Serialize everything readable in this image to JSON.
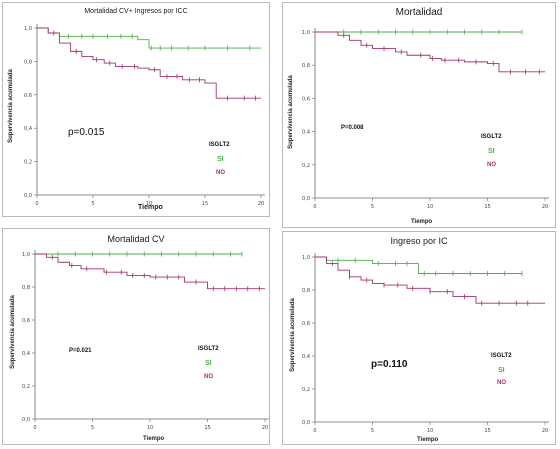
{
  "colors": {
    "si": "#4cae4c",
    "no": "#a0326e",
    "axis": "#666666",
    "grey_curve": "#9a9a9a"
  },
  "charts": [
    {
      "title": "Mortalidad CV+ Ingresos por ICC",
      "ylabel": "Supervivencia acumulada",
      "xlabel": "Tiempo",
      "pvalue": "p=0.015",
      "legend_title": "ISGLT2",
      "legend_si": "SI",
      "legend_no": "NO"
    },
    {
      "title": "Mortalidad",
      "ylabel": "Supervivencia acumulada",
      "xlabel": "Tiempo",
      "pvalue": "P=0.008",
      "legend_title": "ISGLT2",
      "legend_si": "SI",
      "legend_no": "NO"
    },
    {
      "title": "Mortalidad CV",
      "ylabel": "Supervivencia acumulada",
      "xlabel": "Tiempo",
      "pvalue": "P=0.021",
      "legend_title": "ISGLT2",
      "legend_si": "SI",
      "legend_no": "NO"
    },
    {
      "title": "Ingreso por IC",
      "ylabel": "Supervivencia acumulada",
      "xlabel": "Tiempo",
      "pvalue": "p=0.110",
      "legend_title": "ISGL​T2",
      "legend_si": "SI",
      "legend_no": "NO"
    }
  ],
  "chart_data": [
    {
      "type": "line",
      "title": "Mortalidad CV+ Ingresos por ICC",
      "xlabel": "Tiempo",
      "ylabel": "Supervivencia acumulada",
      "xticks": [
        "0",
        "5",
        "10",
        "15",
        "20"
      ],
      "yticks": [
        "0,0",
        "0,2",
        "0,4",
        "0,6",
        "0,8",
        "1,0"
      ],
      "xlim": [
        0,
        20
      ],
      "ylim": [
        0,
        1.0
      ],
      "series": [
        {
          "name": "SI",
          "step_x": [
            0,
            1,
            2,
            9,
            10,
            20
          ],
          "step_y": [
            1.0,
            0.97,
            0.95,
            0.93,
            0.88,
            0.88
          ],
          "censor_x": [
            2.8,
            4,
            5,
            6.3,
            7.5,
            8.5,
            10.2,
            11,
            12,
            13.5,
            15,
            17,
            19
          ]
        },
        {
          "name": "NO",
          "step_x": [
            0,
            1,
            2,
            3,
            4,
            5,
            6,
            7,
            9,
            10,
            11,
            13,
            15,
            16,
            20
          ],
          "step_y": [
            1.0,
            0.97,
            0.91,
            0.86,
            0.83,
            0.81,
            0.79,
            0.77,
            0.76,
            0.75,
            0.71,
            0.69,
            0.67,
            0.58,
            0.58
          ],
          "censor_x": [
            1.5,
            3.5,
            5.3,
            6.5,
            7.6,
            8.7,
            10.5,
            11.6,
            12.5,
            13.6,
            14.5,
            17,
            18.5,
            19.5
          ]
        }
      ]
    },
    {
      "type": "line",
      "title": "Mortalidad",
      "xlabel": "Tiempo",
      "ylabel": "Supervivencia acumulada",
      "xticks": [
        "0",
        "5",
        "10",
        "15",
        "20"
      ],
      "yticks": [
        "0,0",
        "0,2",
        "0,4",
        "0,6",
        "0,8",
        "1,0"
      ],
      "xlim": [
        0,
        20
      ],
      "ylim": [
        0,
        1.0
      ],
      "series": [
        {
          "name": "SI",
          "step_x": [
            0,
            18
          ],
          "step_y": [
            1.0,
            1.0
          ],
          "censor_x": [
            2.5,
            4,
            5.5,
            7,
            8.5,
            10,
            11.5,
            13,
            14.5,
            16,
            18
          ]
        },
        {
          "name": "NO",
          "step_x": [
            0,
            2,
            3,
            4,
            5,
            7,
            8,
            10,
            11,
            13,
            15,
            16,
            20
          ],
          "step_y": [
            1.0,
            0.98,
            0.95,
            0.92,
            0.9,
            0.88,
            0.86,
            0.84,
            0.83,
            0.82,
            0.81,
            0.76,
            0.76
          ],
          "censor_x": [
            2.5,
            4.5,
            6,
            7.5,
            9.2,
            10.2,
            11.3,
            12.5,
            14,
            15.5,
            17,
            18.3,
            19.5
          ]
        }
      ]
    },
    {
      "type": "line",
      "title": "Mortalidad CV",
      "xlabel": "Tiempo",
      "ylabel": "Supervivencia acumulada",
      "xticks": [
        "0",
        "5",
        "10",
        "15",
        "20"
      ],
      "yticks": [
        "0,0",
        "0,2",
        "0,4",
        "0,6",
        "0,8",
        "1,0"
      ],
      "xlim": [
        0,
        20
      ],
      "ylim": [
        0,
        1.0
      ],
      "series": [
        {
          "name": "SI",
          "step_x": [
            0,
            18
          ],
          "step_y": [
            1.0,
            1.0
          ],
          "censor_x": [
            2,
            3.5,
            5,
            6.5,
            8,
            9.5,
            11,
            12.5,
            14,
            15.5,
            17,
            18
          ]
        },
        {
          "name": "NO",
          "step_x": [
            0,
            1,
            2,
            3,
            4,
            6,
            8,
            10,
            13,
            15,
            20
          ],
          "step_y": [
            1.0,
            0.98,
            0.95,
            0.93,
            0.91,
            0.89,
            0.87,
            0.86,
            0.83,
            0.79,
            0.79
          ],
          "censor_x": [
            1.5,
            3.2,
            4.5,
            6.2,
            7.5,
            8.5,
            9.5,
            10.5,
            11.5,
            12.5,
            14,
            15.5,
            16.5,
            17.5,
            18.5,
            19.5
          ]
        }
      ]
    },
    {
      "type": "line",
      "title": "Ingreso por IC",
      "xlabel": "Tiempo",
      "ylabel": "Supervivencia acumulada",
      "xticks": [
        "0",
        "5",
        "10",
        "15",
        "20"
      ],
      "yticks": [
        "0,0",
        "0,2",
        "0,4",
        "0,6",
        "0,8",
        "1,0"
      ],
      "xlim": [
        0,
        20
      ],
      "ylim": [
        0,
        1.0
      ],
      "series": [
        {
          "name": "SI",
          "step_x": [
            0,
            1,
            5,
            9,
            18
          ],
          "step_y": [
            1.0,
            0.98,
            0.96,
            0.9,
            0.9
          ],
          "censor_x": [
            2,
            3.5,
            5.5,
            7,
            8,
            9.5,
            10.5,
            12,
            13.5,
            15,
            16.5,
            18
          ]
        },
        {
          "name": "NO",
          "step_x": [
            0,
            1,
            2,
            3,
            4,
            5,
            6,
            8,
            10,
            12,
            14,
            20
          ],
          "step_y": [
            1.0,
            0.96,
            0.92,
            0.88,
            0.86,
            0.84,
            0.83,
            0.81,
            0.79,
            0.76,
            0.72,
            0.72
          ],
          "censor_x": [
            1.5,
            3,
            4.5,
            6,
            7.2,
            8.5,
            10,
            11.5,
            13,
            14.5,
            16,
            17.5,
            18.5
          ]
        }
      ]
    }
  ]
}
